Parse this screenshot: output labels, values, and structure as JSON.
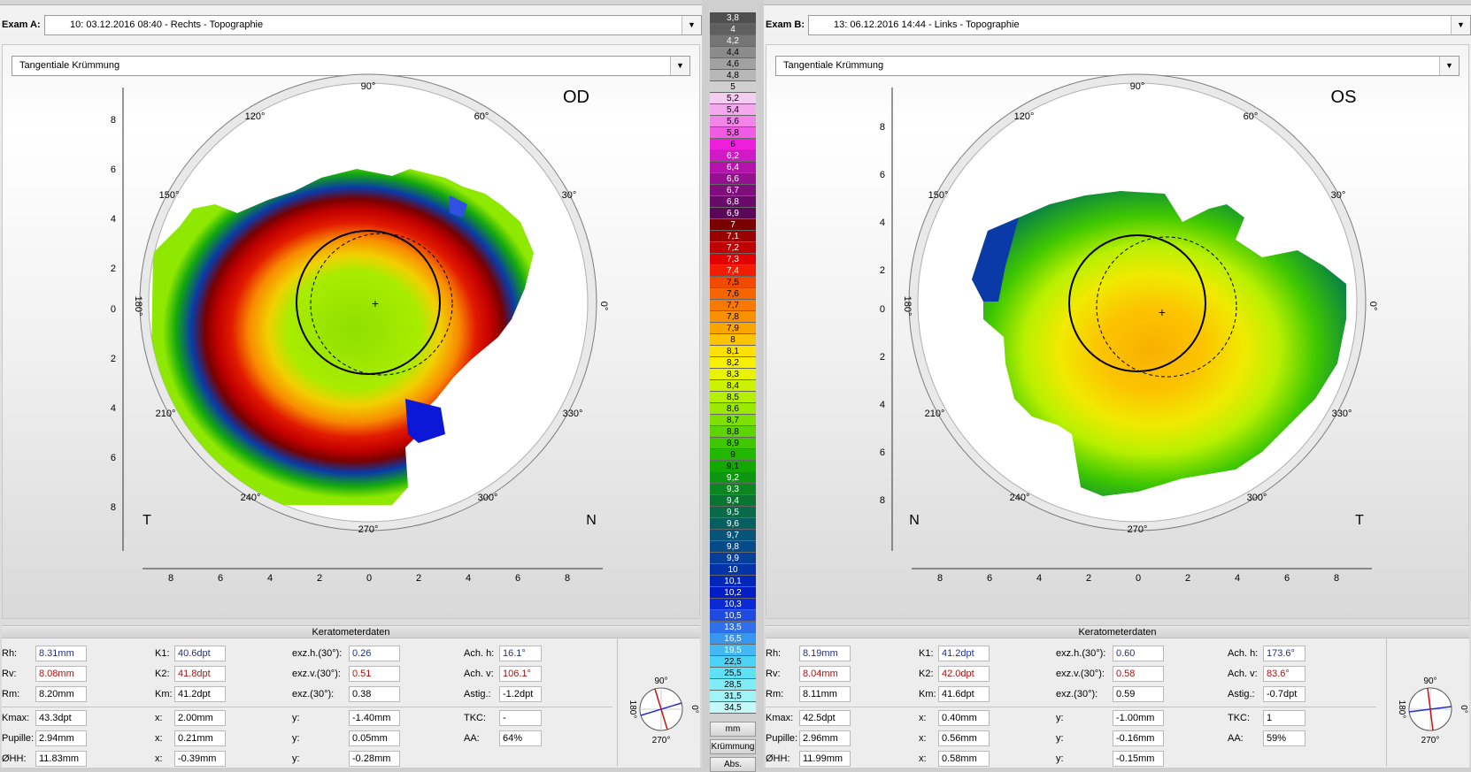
{
  "scale": {
    "values": [
      "3,8",
      "4",
      "4,2",
      "4,4",
      "4,6",
      "4,8",
      "5",
      "5,2",
      "5,4",
      "5,6",
      "5,8",
      "6",
      "6,2",
      "6,4",
      "6,6",
      "6,7",
      "6,8",
      "6,9",
      "7",
      "7,1",
      "7,2",
      "7,3",
      "7,4",
      "7,5",
      "7,6",
      "7,7",
      "7,8",
      "7,9",
      "8",
      "8,1",
      "8,2",
      "8,3",
      "8,4",
      "8,5",
      "8,6",
      "8,7",
      "8,8",
      "8,9",
      "9",
      "9,1",
      "9,2",
      "9,3",
      "9,4",
      "9,5",
      "9,6",
      "9,7",
      "9,8",
      "9,9",
      "10",
      "10,1",
      "10,2",
      "10,3",
      "10,5",
      "13,5",
      "16,5",
      "19,5",
      "22,5",
      "25,5",
      "28,5",
      "31,5",
      "34,5"
    ],
    "colors": [
      "#4e4e4e",
      "#5f5f5f",
      "#757575",
      "#8b8b8b",
      "#a1a1a1",
      "#b7b7b7",
      "#d0d0d0",
      "#f5cdf3",
      "#f6a8ee",
      "#f385ea",
      "#f15ae3",
      "#ee1fdc",
      "#d219c6",
      "#b313aa",
      "#941090",
      "#7f0d7c",
      "#6a0a68",
      "#580856",
      "#7a0000",
      "#990000",
      "#bf0000",
      "#e00000",
      "#f21d00",
      "#f24a00",
      "#f56500",
      "#f77a00",
      "#f89000",
      "#faa500",
      "#fcc400",
      "#fde200",
      "#f8f000",
      "#e8f300",
      "#cdf200",
      "#b4f000",
      "#9be800",
      "#7ee000",
      "#5ed400",
      "#3fc800",
      "#22b800",
      "#13a800",
      "#0d9710",
      "#0b8620",
      "#0a7530",
      "#096a48",
      "#085f60",
      "#075478",
      "#064a88",
      "#053f98",
      "#0333a8",
      "#0227b8",
      "#021cc6",
      "#0b2ad4",
      "#1f4ae0",
      "#2f70ea",
      "#3996f0",
      "#43b8f3",
      "#4ad3f4",
      "#60e2f6",
      "#7fecf6",
      "#a1f3f6",
      "#c5f8f8"
    ],
    "unit_button": "mm",
    "mode_button": "Krümmung",
    "abs_button": "Abs."
  },
  "exam_a": {
    "label": "Exam A:",
    "selection": "10: 03.12.2016 08:40 - Rechts - Topographie",
    "map_type": "Tangentiale Krümmung",
    "eye": "OD",
    "left_letter": "T",
    "right_letter": "N",
    "degrees": {
      "top": "90°",
      "bottom": "270°",
      "left": "180°",
      "right": "0°",
      "d30": "30°",
      "d60": "60°",
      "d120": "120°",
      "d150": "150°",
      "d210": "210°",
      "d240": "240°",
      "d300": "300°",
      "d330": "330°"
    },
    "y_ticks": [
      "8",
      "6",
      "4",
      "2",
      "0",
      "2",
      "4",
      "6",
      "8"
    ],
    "x_ticks": [
      "8",
      "6",
      "4",
      "2",
      "0",
      "2",
      "4",
      "6",
      "8"
    ],
    "kerato": {
      "title": "Keratometerdaten",
      "rh_label": "Rh:",
      "rh": "8.31mm",
      "rv_label": "Rv:",
      "rv": "8.08mm",
      "rm_label": "Rm:",
      "rm": "8.20mm",
      "k1_label": "K1:",
      "k1": "40.6dpt",
      "k2_label": "K2:",
      "k2": "41.8dpt",
      "km_label": "Km:",
      "km": "41.2dpt",
      "exzh_label": "exz.h.(30°):",
      "exzh": "0.26",
      "exzv_label": "exz.v.(30°):",
      "exzv": "0.51",
      "exz_label": "exz.(30°):",
      "exz": "0.38",
      "achh_label": "Ach. h:",
      "achh": "16.1°",
      "achv_label": "Ach. v:",
      "achv": "106.1°",
      "astig_label": "Astig.:",
      "astig": "-1.2dpt",
      "kmax_label": "Kmax:",
      "kmax": "43.3dpt",
      "pupille_label": "Pupille:",
      "pupille": "2.94mm",
      "ohh_label": "ØHH:",
      "ohh": "11.83mm",
      "x_label": "x:",
      "y_label": "y:",
      "x1": "2.00mm",
      "y1": "-1.40mm",
      "x2": "0.21mm",
      "y2": "0.05mm",
      "x3": "-0.39mm",
      "y3": "-0.28mm",
      "tkc_label": "TKC:",
      "tkc": "-",
      "aa_label": "AA:",
      "aa": "64%",
      "compass": {
        "top": "90°",
        "bottom": "270°",
        "left": "180°",
        "right": "0°"
      }
    }
  },
  "exam_b": {
    "label": "Exam B:",
    "selection": "13: 06.12.2016 14:44 - Links - Topographie",
    "map_type": "Tangentiale Krümmung",
    "eye": "OS",
    "left_letter": "N",
    "right_letter": "T",
    "degrees": {
      "top": "90°",
      "bottom": "270°",
      "left": "180°",
      "right": "0°",
      "d30": "30°",
      "d60": "60°",
      "d120": "120°",
      "d150": "150°",
      "d210": "210°",
      "d240": "240°",
      "d300": "300°",
      "d330": "330°"
    },
    "y_ticks": [
      "8",
      "6",
      "4",
      "2",
      "0",
      "2",
      "4",
      "6",
      "8"
    ],
    "x_ticks": [
      "8",
      "6",
      "4",
      "2",
      "0",
      "2",
      "4",
      "6",
      "8"
    ],
    "kerato": {
      "title": "Keratometerdaten",
      "rh_label": "Rh:",
      "rh": "8.19mm",
      "rv_label": "Rv:",
      "rv": "8.04mm",
      "rm_label": "Rm:",
      "rm": "8.11mm",
      "k1_label": "K1:",
      "k1": "41.2dpt",
      "k2_label": "K2:",
      "k2": "42.0dpt",
      "km_label": "Km:",
      "km": "41.6dpt",
      "exzh_label": "exz.h.(30°):",
      "exzh": "0.60",
      "exzv_label": "exz.v.(30°):",
      "exzv": "0.58",
      "exz_label": "exz.(30°):",
      "exz": "0.59",
      "achh_label": "Ach. h:",
      "achh": "173.6°",
      "achv_label": "Ach. v:",
      "achv": "83.6°",
      "astig_label": "Astig.:",
      "astig": "-0.7dpt",
      "kmax_label": "Kmax:",
      "kmax": "42.5dpt",
      "pupille_label": "Pupille:",
      "pupille": "2.96mm",
      "ohh_label": "ØHH:",
      "ohh": "11.99mm",
      "x_label": "x:",
      "y_label": "y:",
      "x1": "0.40mm",
      "y1": "-1.00mm",
      "x2": "0.56mm",
      "y2": "-0.16mm",
      "x3": "0.58mm",
      "y3": "-0.15mm",
      "tkc_label": "TKC:",
      "tkc": "1",
      "aa_label": "AA:",
      "aa": "59%",
      "compass": {
        "top": "90°",
        "bottom": "270°",
        "left": "180°",
        "right": "0°"
      }
    }
  }
}
